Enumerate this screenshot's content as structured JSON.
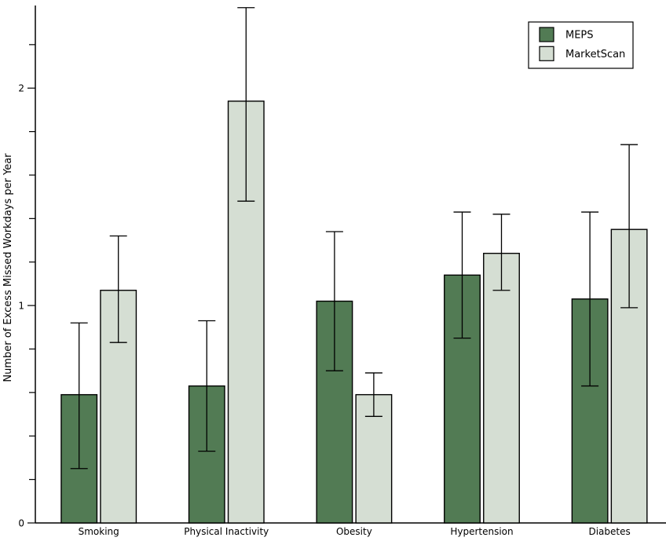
{
  "colors": {
    "background": "#ffffff",
    "axis": "#000000",
    "bar_border": "#000000",
    "error_bar": "#000000",
    "legend_border": "#000000",
    "legend_background": "#ffffff",
    "meps_fill": "#527b54",
    "marketscan_fill": "#d5ded3"
  },
  "chart_data": {
    "type": "bar",
    "title": "",
    "xlabel": "",
    "ylabel": "Number of Excess Missed Workdays per Year",
    "categories": [
      "Smoking",
      "Physical Inactivity",
      "Obesity",
      "Hypertension",
      "Diabetes"
    ],
    "series": [
      {
        "name": "MEPS",
        "color": "#527b54",
        "values": [
          0.59,
          0.63,
          1.02,
          1.14,
          1.03
        ],
        "error_low": [
          0.25,
          0.33,
          0.7,
          0.85,
          0.63
        ],
        "error_high": [
          0.92,
          0.93,
          1.34,
          1.43,
          1.43
        ]
      },
      {
        "name": "MarketScan",
        "color": "#d5ded3",
        "values": [
          1.07,
          1.94,
          0.59,
          1.24,
          1.35
        ],
        "error_low": [
          0.83,
          1.48,
          0.49,
          1.07,
          0.99
        ],
        "error_high": [
          1.32,
          2.37,
          0.69,
          1.42,
          1.74
        ]
      }
    ],
    "ylim": [
      0,
      2.38
    ],
    "yticks_major": [
      0,
      1,
      2
    ],
    "ytick_minor_step": 0.2,
    "grid": false,
    "error_bars": true,
    "legend_position": "top-right",
    "legend_labels": [
      "MEPS",
      "MarketScan"
    ]
  }
}
